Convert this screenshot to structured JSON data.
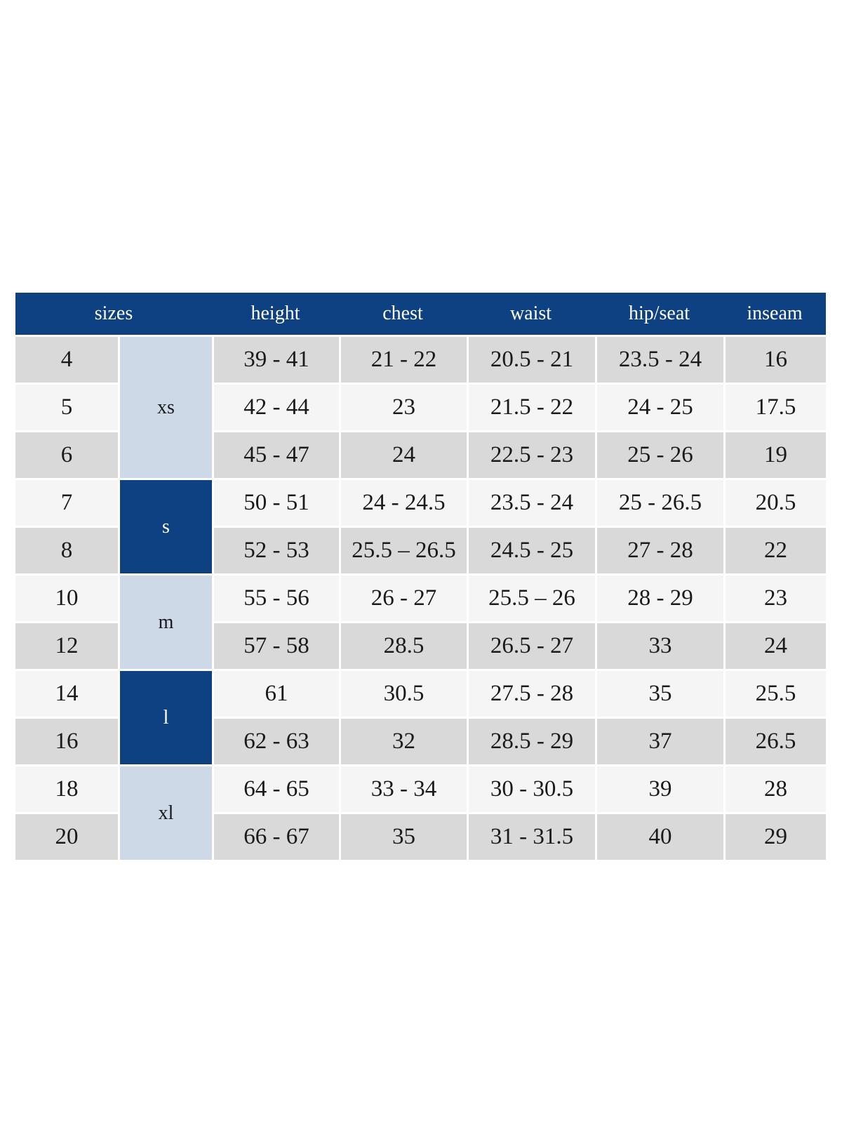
{
  "colors": {
    "header_bg": "#0e4181",
    "header_text": "#ffffff",
    "group_dark": "#0e4181",
    "group_light": "#cdd9e6",
    "row_gray": "#d9d9d9",
    "row_light": "#f5f5f5",
    "cell_text": "#1a1a1a",
    "page_bg": "#ffffff"
  },
  "size_chart": {
    "headers": {
      "sizes": "sizes",
      "height": "height",
      "chest": "chest",
      "waist": "waist",
      "hip_seat": "hip/seat",
      "inseam": "inseam"
    },
    "groups": [
      {
        "label": "xs",
        "tone": "light",
        "row_span": 3
      },
      {
        "label": "s",
        "tone": "dark",
        "row_span": 2
      },
      {
        "label": "m",
        "tone": "light",
        "row_span": 2
      },
      {
        "label": "l",
        "tone": "dark",
        "row_span": 2
      },
      {
        "label": "xl",
        "tone": "light",
        "row_span": 2
      }
    ],
    "rows": [
      {
        "size": "4",
        "group": "xs",
        "height": "39 - 41",
        "chest": "21 - 22",
        "waist": "20.5 - 21",
        "hip_seat": "23.5 - 24",
        "inseam": "16"
      },
      {
        "size": "5",
        "group": "xs",
        "height": "42 - 44",
        "chest": "23",
        "waist": "21.5 - 22",
        "hip_seat": "24 - 25",
        "inseam": "17.5"
      },
      {
        "size": "6",
        "group": "xs",
        "height": "45 - 47",
        "chest": "24",
        "waist": "22.5 - 23",
        "hip_seat": "25 - 26",
        "inseam": "19"
      },
      {
        "size": "7",
        "group": "s",
        "height": "50 - 51",
        "chest": "24 - 24.5",
        "waist": "23.5 - 24",
        "hip_seat": "25 - 26.5",
        "inseam": "20.5"
      },
      {
        "size": "8",
        "group": "s",
        "height": "52 - 53",
        "chest": "25.5 – 26.5",
        "waist": "24.5 - 25",
        "hip_seat": "27 - 28",
        "inseam": "22"
      },
      {
        "size": "10",
        "group": "m",
        "height": "55 - 56",
        "chest": "26 - 27",
        "waist": "25.5 – 26",
        "hip_seat": "28 - 29",
        "inseam": "23"
      },
      {
        "size": "12",
        "group": "m",
        "height": "57 - 58",
        "chest": "28.5",
        "waist": "26.5 - 27",
        "hip_seat": "33",
        "inseam": "24"
      },
      {
        "size": "14",
        "group": "l",
        "height": "61",
        "chest": "30.5",
        "waist": "27.5 - 28",
        "hip_seat": "35",
        "inseam": "25.5"
      },
      {
        "size": "16",
        "group": "l",
        "height": "62 - 63",
        "chest": "32",
        "waist": "28.5 - 29",
        "hip_seat": "37",
        "inseam": "26.5"
      },
      {
        "size": "18",
        "group": "xl",
        "height": "64 - 65",
        "chest": "33 - 34",
        "waist": "30 - 30.5",
        "hip_seat": "39",
        "inseam": "28"
      },
      {
        "size": "20",
        "group": "xl",
        "height": "66 - 67",
        "chest": "35",
        "waist": "31 - 31.5",
        "hip_seat": "40",
        "inseam": "29"
      }
    ]
  }
}
